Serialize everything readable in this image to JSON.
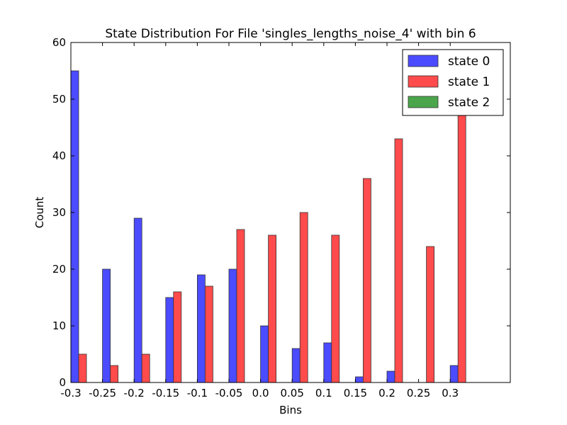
{
  "chart_data": {
    "type": "bar",
    "title": "State Distribution For File 'singles_lengths_noise_4' with bin 6",
    "xlabel": "Bins",
    "ylabel": "Count",
    "categories": [
      "-0.3",
      "-0.25",
      "-0.2",
      "-0.15",
      "-0.1",
      "-0.05",
      "0.0",
      "0.05",
      "0.1",
      "0.15",
      "0.2",
      "0.25",
      "0.3"
    ],
    "ylim": [
      0,
      60
    ],
    "yticks": [
      "0",
      "10",
      "20",
      "30",
      "40",
      "50",
      "60"
    ],
    "grid": false,
    "legend_position": "top-right",
    "series": [
      {
        "name": "state 0",
        "color": "#4b4bff",
        "values": [
          55,
          20,
          29,
          15,
          19,
          20,
          10,
          6,
          7,
          1,
          2,
          0,
          3
        ]
      },
      {
        "name": "state 1",
        "color": "#ff4b4b",
        "values": [
          5,
          3,
          5,
          16,
          17,
          27,
          26,
          30,
          26,
          36,
          43,
          24,
          48
        ]
      },
      {
        "name": "state 2",
        "color": "#4ba64b",
        "values": [
          0,
          0,
          0,
          0,
          0,
          0,
          0,
          0,
          0,
          0,
          0,
          0,
          0
        ]
      }
    ]
  }
}
